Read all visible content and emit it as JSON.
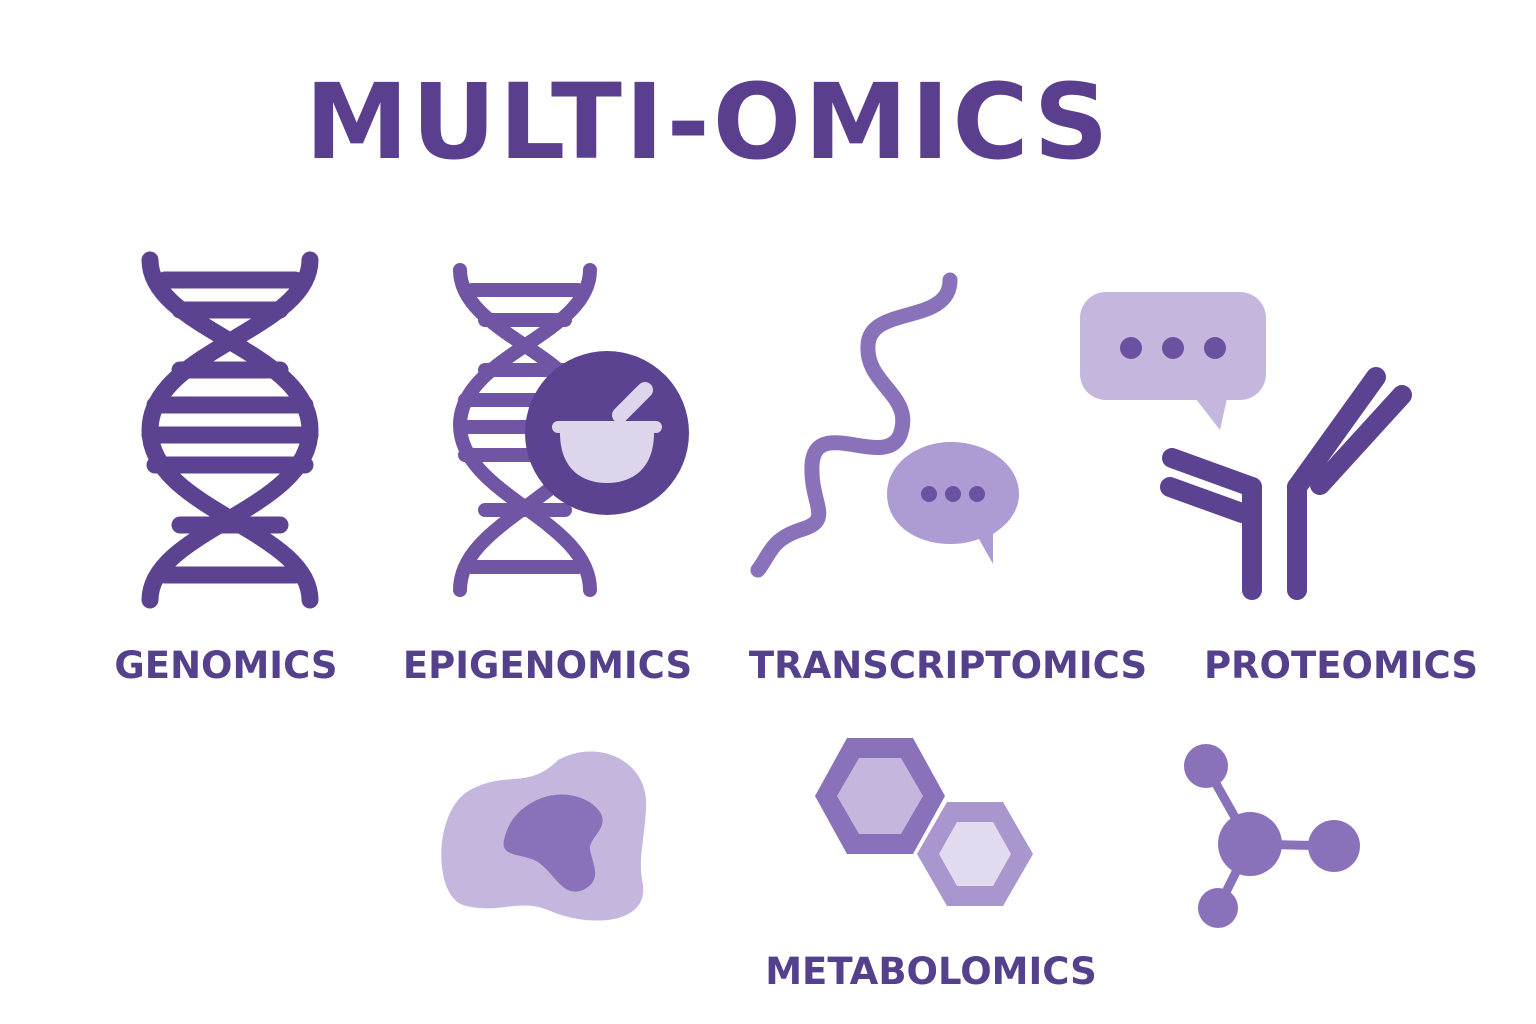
{
  "title": "MULTI-OMICS",
  "labels": {
    "genomics": "GENOMICS",
    "epigenomics": "EPIGENOMICS",
    "transcriptomics": "TRANSCRIPTOMICS",
    "proteomics": "PROTEOMICS",
    "metabolomics": "METABOLOMICS"
  },
  "colors": {
    "dark_purple": "#5b4391",
    "mid_purple": "#8a72bb",
    "light_purple": "#c4b6dd",
    "pale_purple": "#e2dbef"
  }
}
